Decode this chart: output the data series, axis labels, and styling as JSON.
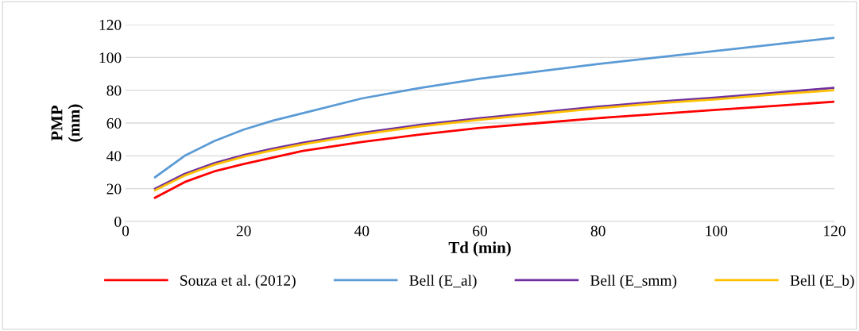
{
  "chart_data": {
    "type": "line",
    "xlabel": "Td (min)",
    "ylabel": "PMP\n(mm)",
    "x": [
      5,
      10,
      15,
      20,
      25,
      30,
      40,
      50,
      60,
      70,
      80,
      90,
      100,
      110,
      120
    ],
    "series": [
      {
        "name": "Souza et al. (2012)",
        "color": "#ff0000",
        "values": [
          14.5,
          24,
          30.5,
          35,
          39,
          43,
          48.5,
          53,
          57,
          60,
          63,
          65.5,
          68,
          70.5,
          73
        ]
      },
      {
        "name": "Bell (E_al)",
        "color": "#5b9bd5",
        "values": [
          27,
          40,
          49,
          56,
          61.5,
          66,
          75,
          81.5,
          87,
          91.5,
          96,
          100,
          104,
          108,
          112
        ]
      },
      {
        "name": "Bell (E_smm)",
        "color": "#7030a0",
        "values": [
          20,
          29,
          35.5,
          40.5,
          44.5,
          48,
          54,
          59,
          63,
          66.5,
          70,
          73,
          75.5,
          78.5,
          81.5
        ]
      },
      {
        "name": "Bell (E_b)",
        "color": "#ffc000",
        "values": [
          19,
          28,
          34.5,
          39.5,
          43.5,
          47,
          53,
          58,
          62,
          65.5,
          69,
          72,
          74.5,
          77.5,
          80
        ]
      }
    ],
    "xlim": [
      0,
      120
    ],
    "xticks": [
      0,
      20,
      40,
      60,
      80,
      100,
      120
    ],
    "ylim": [
      0,
      120
    ],
    "yticks": [
      0,
      20,
      40,
      60,
      80,
      100,
      120
    ],
    "grid": "y",
    "legend": "bottom",
    "marker": "none",
    "line_style": "solid"
  }
}
